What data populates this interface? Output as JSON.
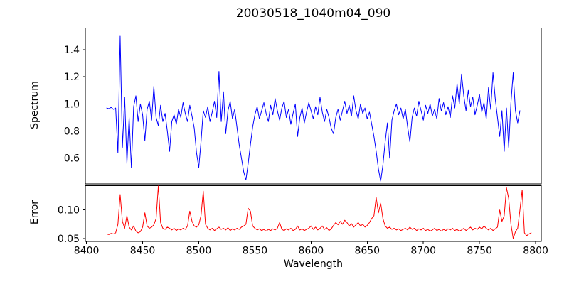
{
  "title": "20030518_1040m04_090",
  "chart_data": {
    "type": "line",
    "title": "20030518_1040m04_090",
    "xlabel": "Wavelength",
    "grid": false,
    "legend": "none",
    "x_start": 8418,
    "x_step": 2,
    "xlim": [
      8399,
      8805
    ],
    "xticks": [
      8400,
      8450,
      8500,
      8550,
      8600,
      8650,
      8700,
      8750,
      8800
    ],
    "xtick_labels": [
      "8400",
      "8450",
      "8500",
      "8550",
      "8600",
      "8650",
      "8700",
      "8750",
      "8800"
    ],
    "panels": [
      {
        "name": "spectrum",
        "ylabel": "Spectrum",
        "ylim": [
          0.41,
          1.56
        ],
        "yticks": [
          0.6,
          0.8,
          1.0,
          1.2,
          1.4
        ],
        "ytick_labels": [
          "0.6",
          "0.8",
          "1.0",
          "1.2",
          "1.4"
        ],
        "color": "#0000ff",
        "values": [
          0.97,
          0.965,
          0.975,
          0.96,
          0.97,
          0.64,
          1.5,
          0.68,
          1.05,
          0.56,
          0.9,
          0.53,
          0.98,
          1.06,
          0.87,
          1.0,
          0.92,
          0.73,
          0.96,
          1.02,
          0.88,
          1.13,
          0.9,
          0.84,
          0.99,
          0.87,
          0.93,
          0.8,
          0.65,
          0.87,
          0.92,
          0.85,
          0.96,
          0.9,
          1.01,
          0.93,
          0.87,
          0.99,
          0.91,
          0.82,
          0.64,
          0.53,
          0.72,
          0.95,
          0.9,
          0.98,
          0.87,
          0.94,
          1.02,
          0.9,
          1.24,
          0.87,
          1.09,
          0.78,
          0.95,
          1.02,
          0.89,
          0.96,
          0.83,
          0.7,
          0.6,
          0.5,
          0.44,
          0.56,
          0.7,
          0.83,
          0.92,
          0.98,
          0.89,
          0.95,
          1.01,
          0.93,
          0.87,
          0.99,
          0.92,
          1.04,
          0.95,
          0.88,
          0.97,
          1.02,
          0.9,
          0.96,
          0.85,
          0.93,
          1.0,
          0.76,
          0.9,
          0.97,
          0.86,
          0.94,
          1.01,
          0.95,
          0.89,
          0.98,
          0.92,
          1.05,
          0.94,
          0.87,
          0.96,
          0.9,
          0.82,
          0.78,
          0.9,
          0.96,
          0.88,
          0.95,
          1.02,
          0.93,
          0.99,
          0.91,
          1.06,
          0.95,
          0.89,
          1.0,
          0.93,
          0.97,
          0.89,
          0.94,
          0.85,
          0.76,
          0.65,
          0.52,
          0.43,
          0.55,
          0.72,
          0.86,
          0.6,
          0.88,
          0.95,
          1.0,
          0.92,
          0.97,
          0.89,
          0.96,
          0.83,
          0.72,
          0.9,
          0.97,
          0.91,
          1.02,
          0.95,
          0.88,
          0.99,
          0.93,
          1.0,
          0.91,
          0.96,
          0.89,
          1.04,
          0.95,
          1.01,
          0.92,
          0.98,
          0.9,
          1.06,
          0.97,
          1.15,
          1.0,
          1.22,
          1.06,
          0.95,
          1.1,
          0.98,
          1.05,
          0.92,
          0.99,
          1.07,
          0.94,
          1.01,
          0.89,
          1.12,
          0.96,
          1.23,
          1.04,
          0.9,
          0.76,
          0.95,
          0.65,
          0.97,
          0.68,
          1.01,
          1.23,
          0.95,
          0.86,
          0.95
        ]
      },
      {
        "name": "error",
        "ylabel": "Error",
        "ylim": [
          0.045,
          0.1425
        ],
        "yticks": [
          0.05,
          0.1
        ],
        "ytick_labels": [
          "0.05",
          "0.10"
        ],
        "color": "#ff0000",
        "values": [
          0.058,
          0.057,
          0.059,
          0.058,
          0.06,
          0.075,
          0.127,
          0.08,
          0.068,
          0.09,
          0.07,
          0.065,
          0.072,
          0.063,
          0.06,
          0.062,
          0.07,
          0.095,
          0.072,
          0.068,
          0.07,
          0.074,
          0.085,
          0.142,
          0.078,
          0.068,
          0.066,
          0.07,
          0.068,
          0.065,
          0.068,
          0.064,
          0.067,
          0.065,
          0.068,
          0.066,
          0.072,
          0.098,
          0.08,
          0.072,
          0.07,
          0.074,
          0.09,
          0.133,
          0.075,
          0.068,
          0.065,
          0.068,
          0.064,
          0.067,
          0.07,
          0.066,
          0.068,
          0.065,
          0.069,
          0.064,
          0.067,
          0.065,
          0.068,
          0.066,
          0.07,
          0.072,
          0.075,
          0.103,
          0.098,
          0.072,
          0.068,
          0.065,
          0.067,
          0.064,
          0.066,
          0.063,
          0.066,
          0.064,
          0.067,
          0.065,
          0.068,
          0.078,
          0.066,
          0.064,
          0.067,
          0.065,
          0.068,
          0.064,
          0.066,
          0.072,
          0.065,
          0.067,
          0.064,
          0.066,
          0.068,
          0.072,
          0.066,
          0.07,
          0.065,
          0.068,
          0.072,
          0.066,
          0.069,
          0.064,
          0.067,
          0.073,
          0.078,
          0.074,
          0.08,
          0.075,
          0.082,
          0.078,
          0.072,
          0.076,
          0.07,
          0.074,
          0.078,
          0.072,
          0.075,
          0.07,
          0.073,
          0.078,
          0.085,
          0.09,
          0.122,
          0.095,
          0.112,
          0.085,
          0.072,
          0.068,
          0.07,
          0.066,
          0.068,
          0.065,
          0.067,
          0.064,
          0.066,
          0.068,
          0.065,
          0.07,
          0.066,
          0.068,
          0.064,
          0.067,
          0.065,
          0.068,
          0.064,
          0.066,
          0.063,
          0.065,
          0.068,
          0.064,
          0.066,
          0.063,
          0.066,
          0.064,
          0.067,
          0.065,
          0.068,
          0.064,
          0.066,
          0.063,
          0.065,
          0.068,
          0.064,
          0.067,
          0.07,
          0.065,
          0.068,
          0.066,
          0.07,
          0.067,
          0.072,
          0.068,
          0.065,
          0.068,
          0.064,
          0.067,
          0.07,
          0.1,
          0.08,
          0.09,
          0.139,
          0.12,
          0.075,
          0.05,
          0.062,
          0.068,
          0.1,
          0.135,
          0.06,
          0.055,
          0.058,
          0.06
        ]
      }
    ]
  }
}
